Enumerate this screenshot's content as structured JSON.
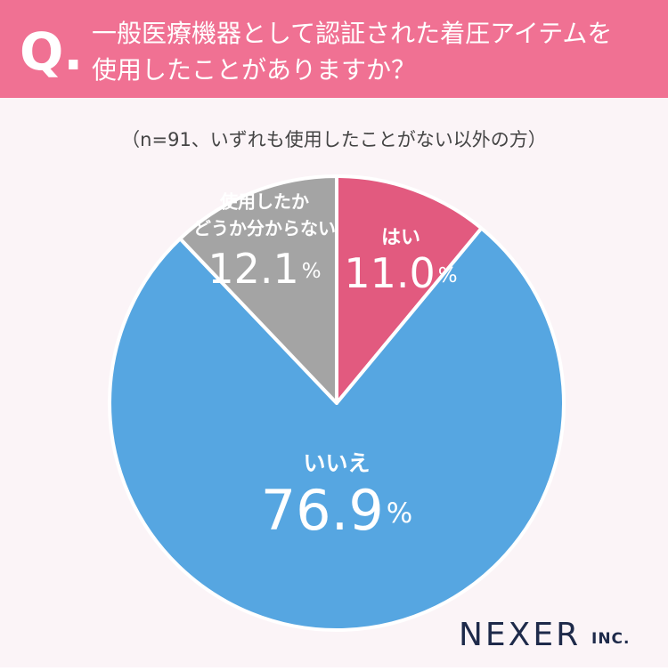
{
  "chart_data": {
    "type": "pie",
    "title_prefix": "Q.",
    "title_lines": [
      "一般医療機器として認証された着圧アイテムを",
      "使用したことがありますか？"
    ],
    "subtitle": "（n=91、いずれも使用したことがない以外の方）",
    "categories": [
      [
        "はい"
      ],
      [
        "いいえ"
      ],
      [
        "使用したか",
        "どうか分からない"
      ]
    ],
    "values": [
      11.0,
      76.9,
      12.1
    ],
    "value_labels": [
      "11.0",
      "76.9",
      "12.1"
    ],
    "unit": "%",
    "colors": [
      "#e25a7f",
      "#56a6e1",
      "#a4a4a4"
    ],
    "brand": "NEXER",
    "brand_suffix": "INC."
  }
}
